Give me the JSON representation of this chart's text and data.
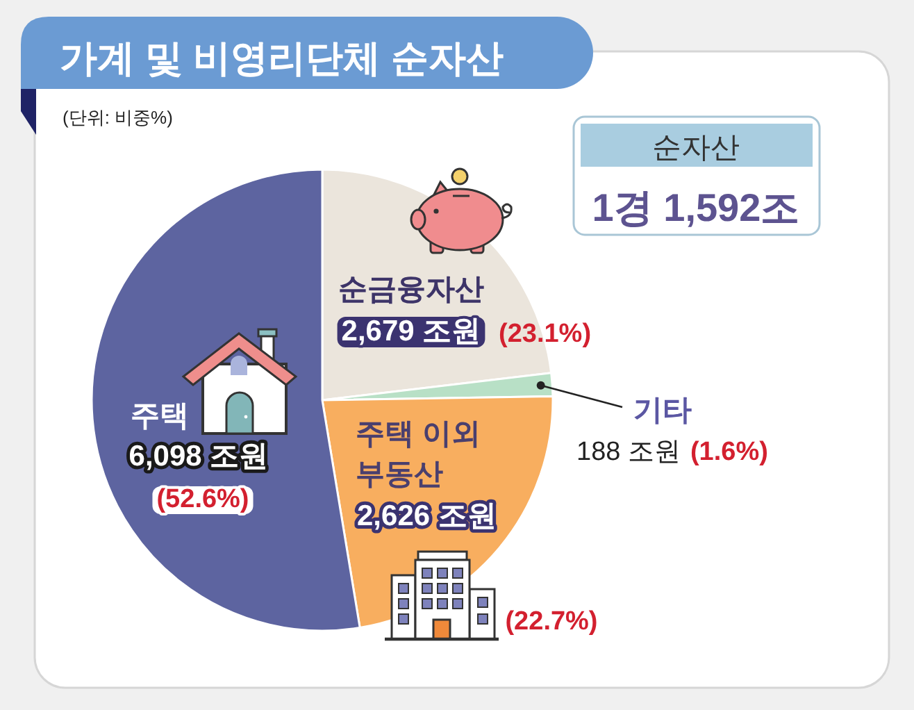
{
  "chart_data": {
    "type": "pie",
    "title": "가계 및 비영리단체 순자산",
    "subtitle": "(단위: 비중%)",
    "categories": [
      "순금융자산",
      "기타",
      "주택 이외 부동산",
      "주택"
    ],
    "values": [
      2679,
      188,
      2626,
      6098
    ],
    "value_labels": [
      "2,679 조원 (23.1%)",
      "188 조원 (1.6%)",
      "2,626 조원 (22.7%)",
      "6,098 조원 (52.6%)"
    ],
    "colors": [
      "#ebe5dc",
      "#b8e0c6",
      "#f8ae5f",
      "#5d64a0"
    ],
    "annotations": [
      "순자산",
      "1경 1,592조"
    ]
  }
}
